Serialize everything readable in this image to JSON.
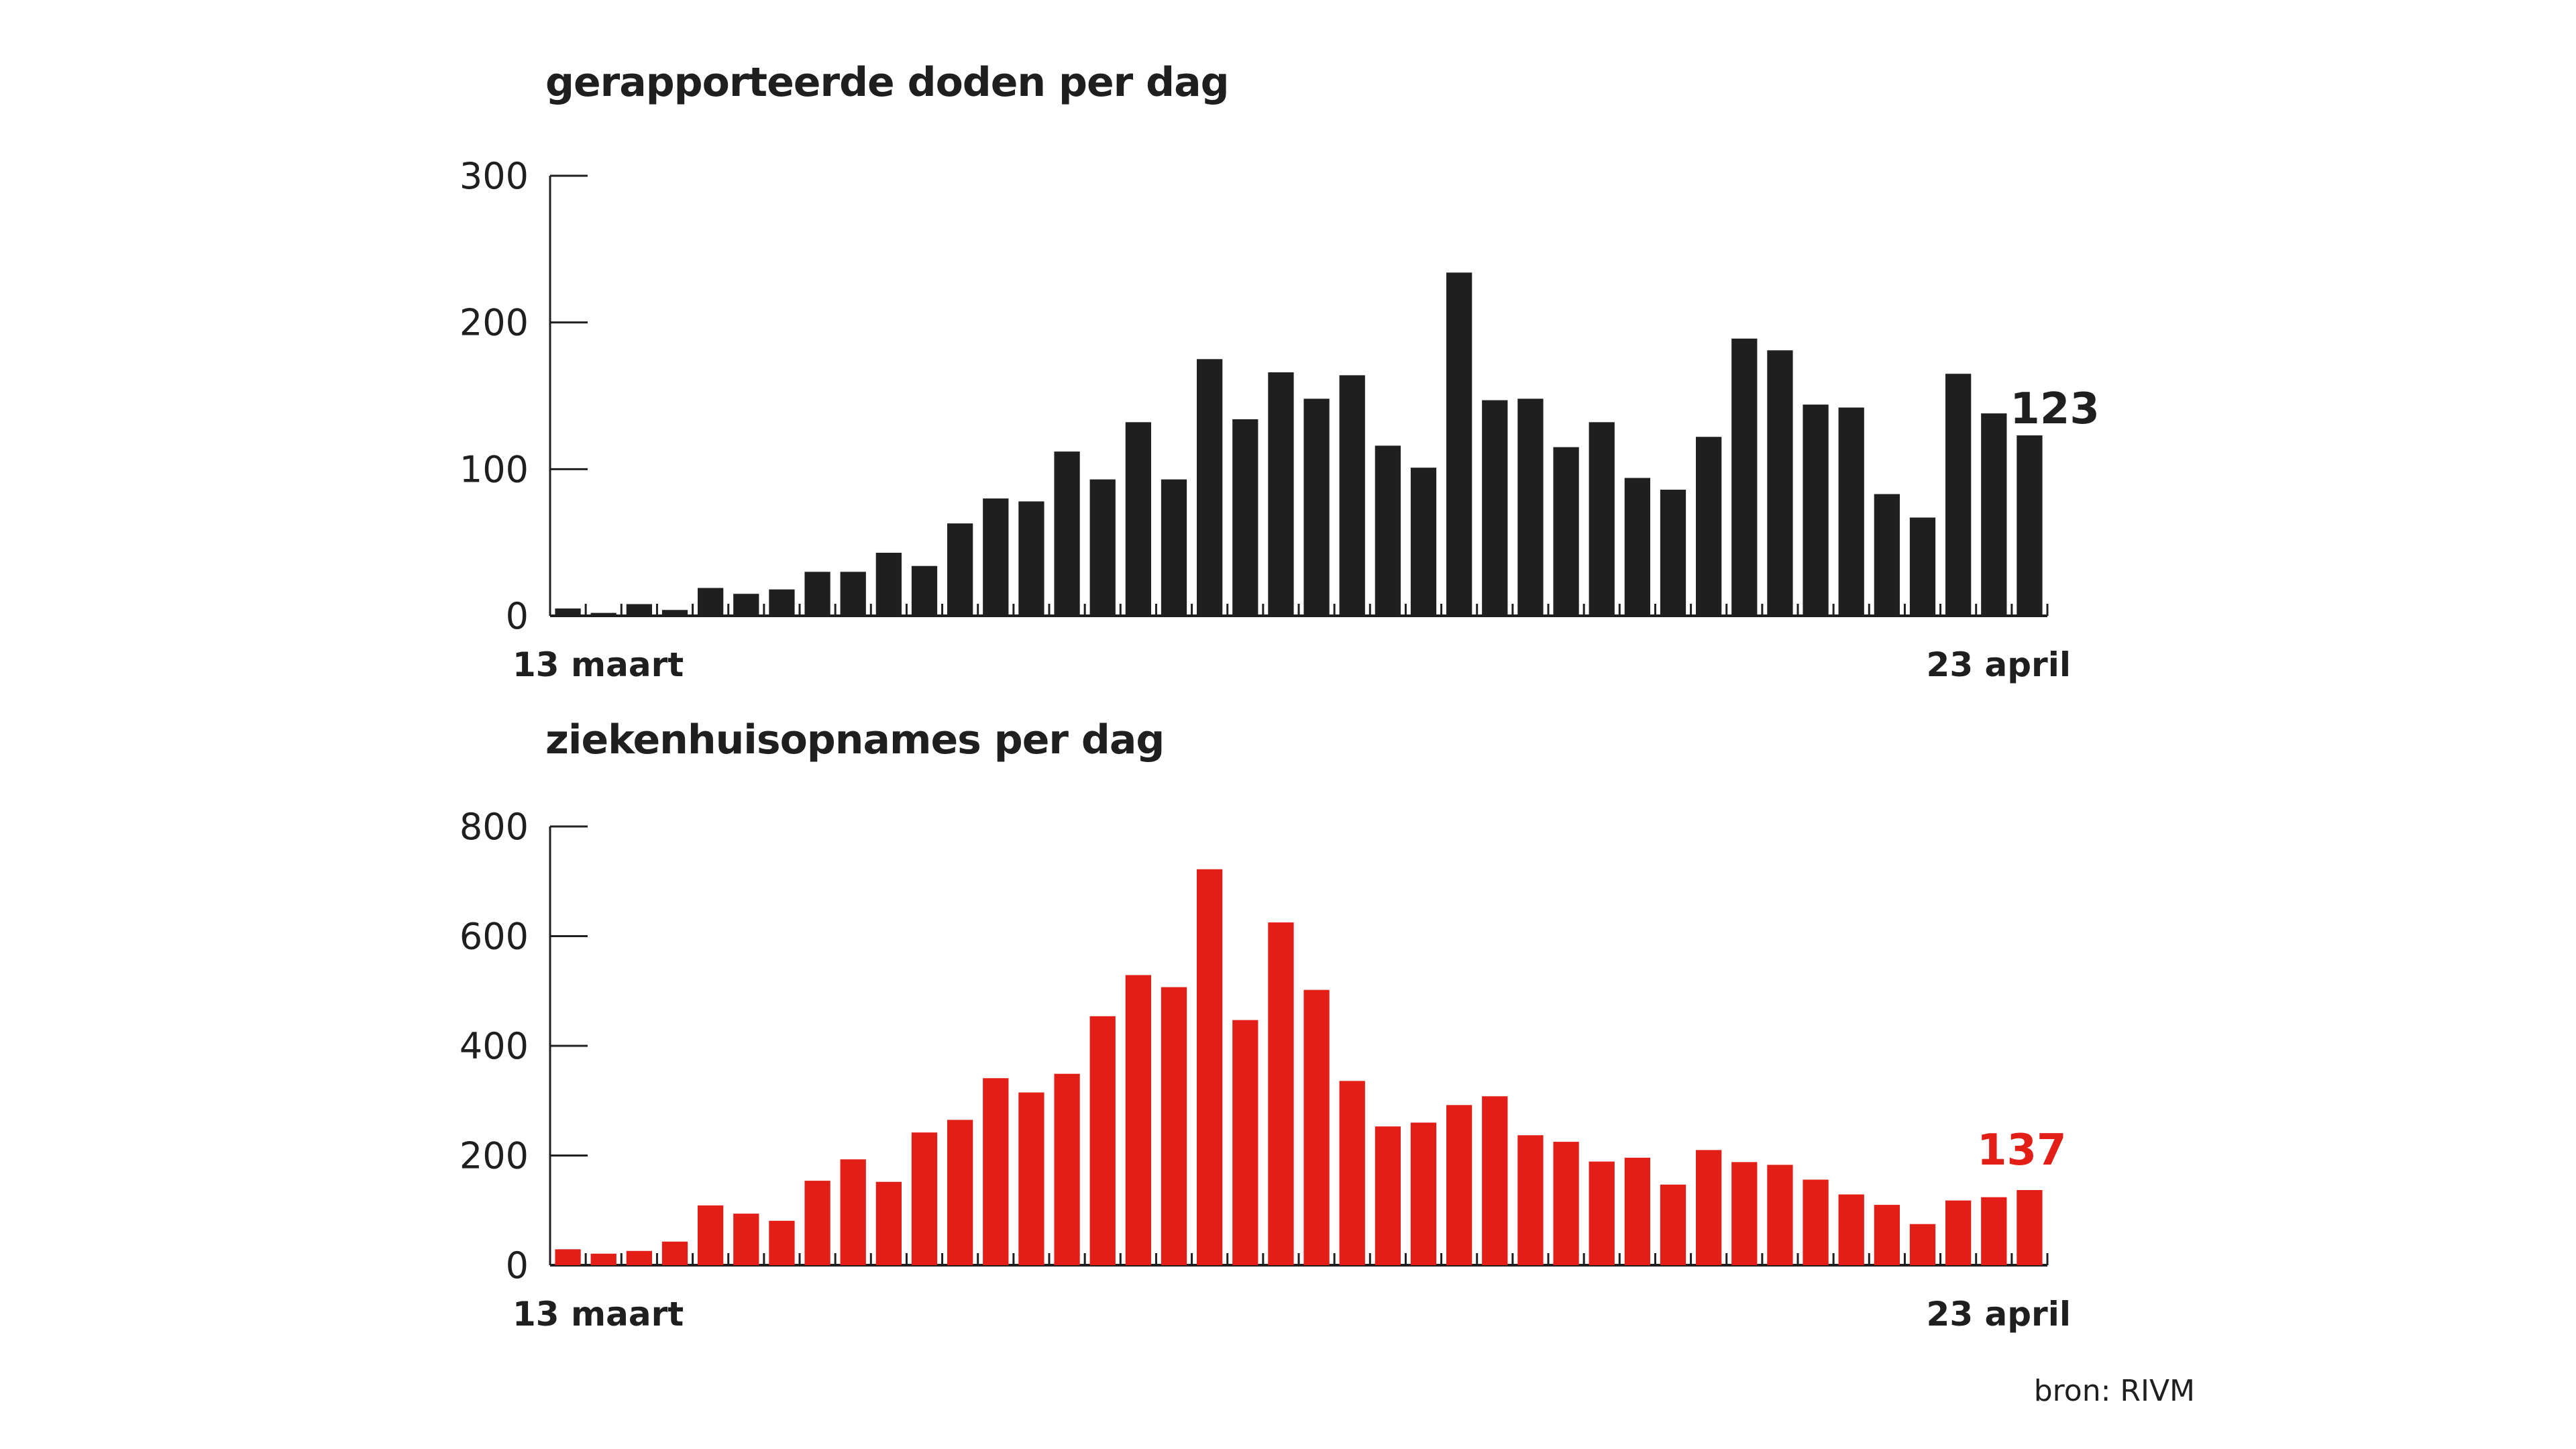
{
  "source": "bron: RIVM",
  "colors": {
    "deaths": "#1f1f1f",
    "hospital": "#e31e17",
    "axis": "#1f1f1f",
    "text": "#1f1f1f"
  },
  "chart_data": [
    {
      "type": "bar",
      "title": "gerapporteerde doden per dag",
      "xlabel": "",
      "ylabel": "",
      "x_start_label": "13 maart",
      "x_end_label": "23 april",
      "yticks": [
        0,
        100,
        200,
        300
      ],
      "ylim": [
        0,
        300
      ],
      "grid": false,
      "color": "#1f1f1f",
      "last_value_label": "123",
      "categories_range": [
        "13 maart",
        "23 april"
      ],
      "values": [
        5,
        2,
        8,
        4,
        19,
        15,
        18,
        30,
        30,
        43,
        34,
        63,
        80,
        78,
        112,
        93,
        132,
        93,
        175,
        134,
        166,
        148,
        164,
        116,
        101,
        234,
        147,
        148,
        115,
        132,
        94,
        86,
        122,
        189,
        181,
        144,
        142,
        83,
        67,
        165,
        138,
        123
      ]
    },
    {
      "type": "bar",
      "title": "ziekenhuisopnames per dag",
      "xlabel": "",
      "ylabel": "",
      "x_start_label": "13 maart",
      "x_end_label": "23 april",
      "yticks": [
        0,
        200,
        400,
        600,
        800
      ],
      "ylim": [
        0,
        800
      ],
      "grid": false,
      "color": "#e31e17",
      "last_value_label": "137",
      "categories_range": [
        "13 maart",
        "23 april"
      ],
      "values": [
        29,
        21,
        26,
        43,
        109,
        94,
        81,
        154,
        193,
        152,
        242,
        265,
        341,
        315,
        349,
        454,
        529,
        507,
        722,
        447,
        625,
        502,
        336,
        253,
        260,
        292,
        308,
        237,
        225,
        189,
        196,
        147,
        210,
        188,
        183,
        156,
        129,
        110,
        75,
        118,
        124,
        137
      ]
    }
  ]
}
